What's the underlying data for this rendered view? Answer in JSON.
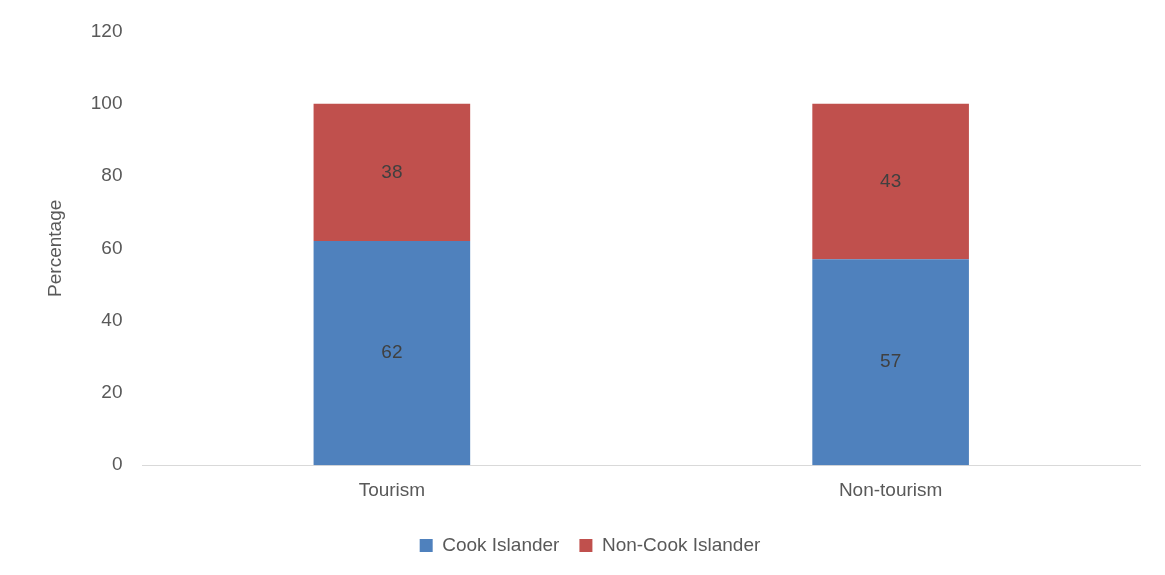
{
  "chart_data": {
    "type": "bar",
    "stacked": true,
    "ylabel": "Percentage",
    "categories": [
      "Tourism",
      "Non-tourism"
    ],
    "series": [
      {
        "name": "Cook Islander",
        "color": "#4f81bd",
        "values": [
          62,
          57
        ]
      },
      {
        "name": "Non-Cook Islander",
        "color": "#c0504d",
        "values": [
          38,
          43
        ]
      }
    ],
    "ylim": [
      0,
      120
    ],
    "yticks": [
      0,
      20,
      40,
      60,
      80,
      100,
      120
    ],
    "grid": false,
    "legend": "bottom",
    "data_labels": true
  }
}
